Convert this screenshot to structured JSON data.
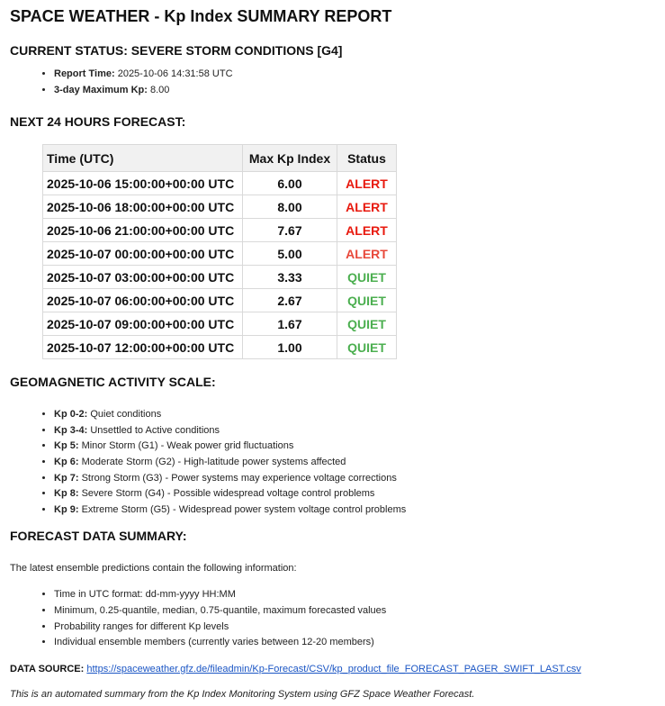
{
  "title": "SPACE WEATHER - Kp Index SUMMARY REPORT",
  "current_status": {
    "heading": "CURRENT STATUS: SEVERE STORM CONDITIONS [G4]",
    "items": [
      {
        "label": "Report Time:",
        "value": "2025-10-06 14:31:58 UTC"
      },
      {
        "label": "3-day Maximum Kp:",
        "value": "8.00"
      }
    ]
  },
  "forecast": {
    "heading": "NEXT 24 HOURS FORECAST:",
    "columns": [
      "Time (UTC)",
      "Max Kp Index",
      "Status"
    ],
    "rows": [
      {
        "time": "2025-10-06 15:00:00+00:00 UTC",
        "kp": "6.00",
        "status": "ALERT",
        "color": "#e8190e"
      },
      {
        "time": "2025-10-06 18:00:00+00:00 UTC",
        "kp": "8.00",
        "status": "ALERT",
        "color": "#e8190e"
      },
      {
        "time": "2025-10-06 21:00:00+00:00 UTC",
        "kp": "7.67",
        "status": "ALERT",
        "color": "#e8190e"
      },
      {
        "time": "2025-10-07 00:00:00+00:00 UTC",
        "kp": "5.00",
        "status": "ALERT",
        "color": "#e8483a"
      },
      {
        "time": "2025-10-07 03:00:00+00:00 UTC",
        "kp": "3.33",
        "status": "QUIET",
        "color": "#4caf50"
      },
      {
        "time": "2025-10-07 06:00:00+00:00 UTC",
        "kp": "2.67",
        "status": "QUIET",
        "color": "#4caf50"
      },
      {
        "time": "2025-10-07 09:00:00+00:00 UTC",
        "kp": "1.67",
        "status": "QUIET",
        "color": "#4caf50"
      },
      {
        "time": "2025-10-07 12:00:00+00:00 UTC",
        "kp": "1.00",
        "status": "QUIET",
        "color": "#4caf50"
      }
    ]
  },
  "scale": {
    "heading": "GEOMAGNETIC ACTIVITY SCALE:",
    "items": [
      {
        "label": "Kp 0-2:",
        "text": "Quiet conditions"
      },
      {
        "label": "Kp 3-4:",
        "text": "Unsettled to Active conditions"
      },
      {
        "label": "Kp 5:",
        "text": "Minor Storm (G1) - Weak power grid fluctuations"
      },
      {
        "label": "Kp 6:",
        "text": "Moderate Storm (G2) - High-latitude power systems affected"
      },
      {
        "label": "Kp 7:",
        "text": "Strong Storm (G3) - Power systems may experience voltage corrections"
      },
      {
        "label": "Kp 8:",
        "text": "Severe Storm (G4) - Possible widespread voltage control problems"
      },
      {
        "label": "Kp 9:",
        "text": "Extreme Storm (G5) - Widespread power system voltage control problems"
      }
    ]
  },
  "summary": {
    "heading": "FORECAST DATA SUMMARY:",
    "intro": "The latest ensemble predictions contain the following information:",
    "items": [
      "Time in UTC format: dd-mm-yyyy HH:MM",
      "Minimum, 0.25-quantile, median, 0.75-quantile, maximum forecasted values",
      "Probability ranges for different Kp levels",
      "Individual ensemble members (currently varies between 12-20 members)"
    ]
  },
  "source": {
    "label": "DATA SOURCE:",
    "url": "https://spaceweather.gfz.de/fileadmin/Kp-Forecast/CSV/kp_product_file_FORECAST_PAGER_SWIFT_LAST.csv"
  },
  "footer": "This is an automated summary from the Kp Index Monitoring System using GFZ Space Weather Forecast."
}
